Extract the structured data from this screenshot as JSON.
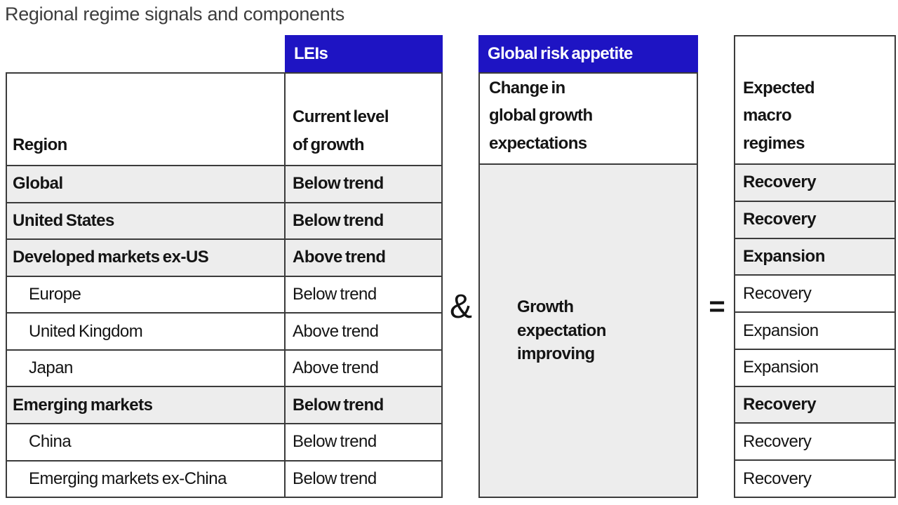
{
  "title": "Regional regime signals and components",
  "colors": {
    "header_blue": "#1e14c3",
    "row_gray": "#ededed",
    "border_dark": "#3b3b3b",
    "title_gray": "#3d3d3d",
    "text_dark": "#141414"
  },
  "headers": {
    "lei_group": "LEIs",
    "risk_group": "Global risk appetite",
    "region_col": "Region",
    "growth_col": "Current level\nof growth",
    "risk_col": "Change in\nglobal growth\nexpectations",
    "regime_col": "Expected\nmacro\nregimes"
  },
  "operators": {
    "and": "&",
    "equals": "="
  },
  "merged_risk_cell": "Growth\nexpectation\nimproving",
  "chart_data": {
    "type": "table",
    "title": "Regional regime signals and components",
    "column_groups": [
      "LEIs",
      "Global risk appetite"
    ],
    "columns": [
      "Region",
      "Current level of growth",
      "Change in global growth expectations",
      "Expected macro regimes"
    ],
    "merged_middle_column_value": "Growth expectation improving",
    "merged_middle_column_spans_all_rows": true,
    "operators_between_columns": [
      "&",
      "="
    ],
    "rows": [
      {
        "region": "Global",
        "current_level_of_growth": "Below trend",
        "expected_macro_regime": "Recovery",
        "emphasized": true,
        "indented": false
      },
      {
        "region": "United States",
        "current_level_of_growth": "Below trend",
        "expected_macro_regime": "Recovery",
        "emphasized": true,
        "indented": false
      },
      {
        "region": "Developed markets ex-US",
        "current_level_of_growth": "Above trend",
        "expected_macro_regime": "Expansion",
        "emphasized": true,
        "indented": false
      },
      {
        "region": "Europe",
        "current_level_of_growth": "Below trend",
        "expected_macro_regime": "Recovery",
        "emphasized": false,
        "indented": true
      },
      {
        "region": "United Kingdom",
        "current_level_of_growth": "Above trend",
        "expected_macro_regime": "Expansion",
        "emphasized": false,
        "indented": true
      },
      {
        "region": "Japan",
        "current_level_of_growth": "Above trend",
        "expected_macro_regime": "Expansion",
        "emphasized": false,
        "indented": true
      },
      {
        "region": "Emerging markets",
        "current_level_of_growth": "Below trend",
        "expected_macro_regime": "Recovery",
        "emphasized": true,
        "indented": false
      },
      {
        "region": "China",
        "current_level_of_growth": "Below trend",
        "expected_macro_regime": "Recovery",
        "emphasized": false,
        "indented": true
      },
      {
        "region": "Emerging markets ex-China",
        "current_level_of_growth": "Below trend",
        "expected_macro_regime": "Recovery",
        "emphasized": false,
        "indented": true
      }
    ]
  }
}
